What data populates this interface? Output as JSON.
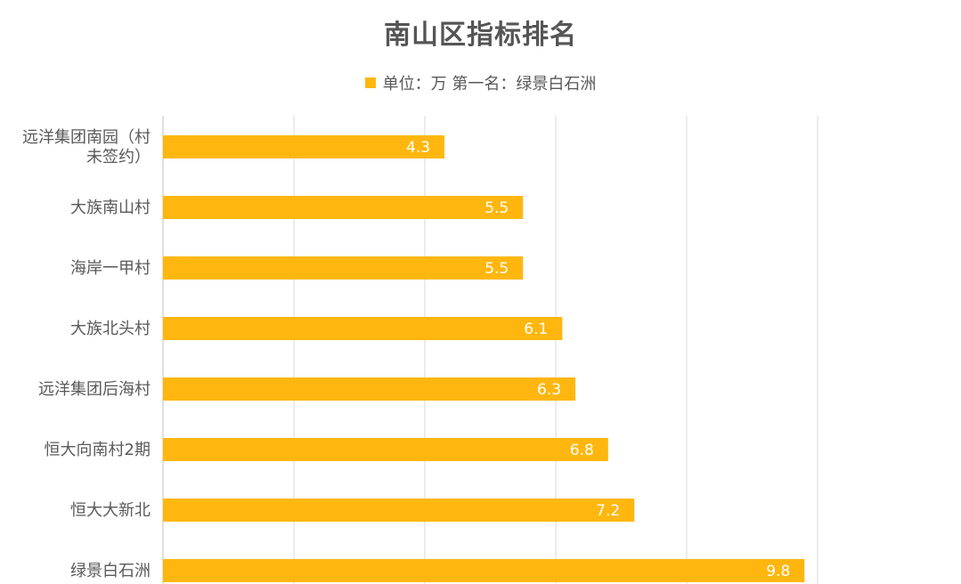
{
  "chart_data": {
    "type": "bar",
    "orientation": "horizontal",
    "title": "南山区指标排名",
    "legend": "单位：万 第一名：绿景白石洲",
    "categories": [
      [
        "远洋集团南园（村",
        "未签约）"
      ],
      [
        "大族南山村"
      ],
      [
        "海岸一甲村"
      ],
      [
        "大族北头村"
      ],
      [
        "远洋集团后海村"
      ],
      [
        "恒大向南村2期"
      ],
      [
        "恒大大新北"
      ],
      [
        "绿景白石洲"
      ]
    ],
    "values": [
      4.3,
      5.5,
      5.5,
      6.1,
      6.3,
      6.8,
      7.2,
      9.8
    ],
    "xlim": [
      0,
      10
    ],
    "grid": true,
    "colors": {
      "bar": "#FFB70F",
      "grid": "#D9D9D9",
      "category_text": "#595959",
      "value_text": "#FFFFFF"
    }
  }
}
